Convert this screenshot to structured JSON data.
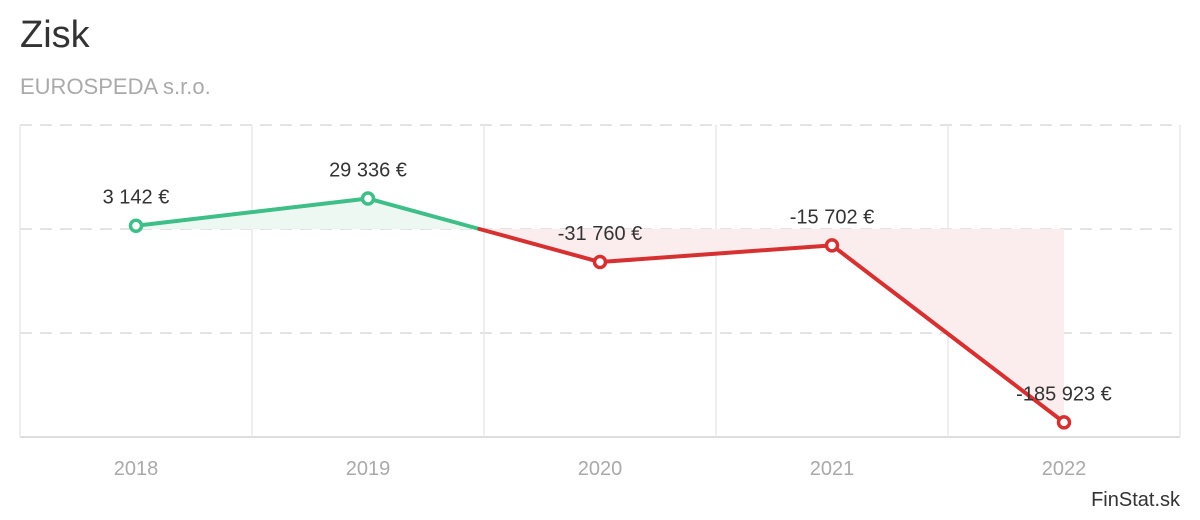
{
  "chart_data": {
    "type": "line",
    "title": "Zisk",
    "subtitle": "EUROSPEDA s.r.o.",
    "categories": [
      "2018",
      "2019",
      "2020",
      "2021",
      "2022"
    ],
    "values": [
      3142,
      29336,
      -31760,
      -15702,
      -185923
    ],
    "labels": [
      "3 142 €",
      "29 336 €",
      "-31 760 €",
      "-15 702 €",
      "-185 923 €"
    ],
    "ylim": [
      -200000,
      100000
    ],
    "yticks": [
      100000,
      0,
      -100000,
      -200000
    ],
    "grid": true,
    "colors": {
      "positive": "#3dbf87",
      "negative": "#d63031",
      "positive_fill": "#eef8f3",
      "negative_fill": "#fbeded"
    }
  },
  "credit": "FinStat.sk"
}
